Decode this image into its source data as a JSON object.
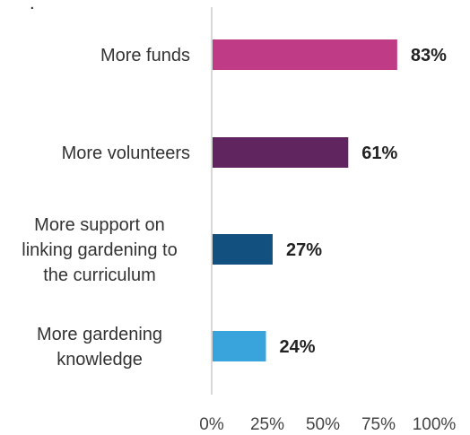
{
  "stray_mark": ".",
  "chart_data": {
    "type": "bar",
    "orientation": "horizontal",
    "categories": [
      [
        "More funds"
      ],
      [
        "More volunteers"
      ],
      [
        "More support on",
        "linking gardening to",
        "the curriculum"
      ],
      [
        "More gardening",
        "knowledge"
      ]
    ],
    "values": [
      83,
      61,
      27,
      24
    ],
    "value_labels": [
      "83%",
      "61%",
      "27%",
      "24%"
    ],
    "colors": [
      "#bf3b85",
      "#60245f",
      "#12507f",
      "#39a3dc"
    ],
    "xlim": [
      0,
      100
    ],
    "xticks": [
      0,
      25,
      50,
      75,
      100
    ],
    "xtick_labels": [
      "0%",
      "25%",
      "50%",
      "75%",
      "100%"
    ],
    "grid": false,
    "legend": "none",
    "title": "",
    "xlabel": "",
    "ylabel": ""
  }
}
